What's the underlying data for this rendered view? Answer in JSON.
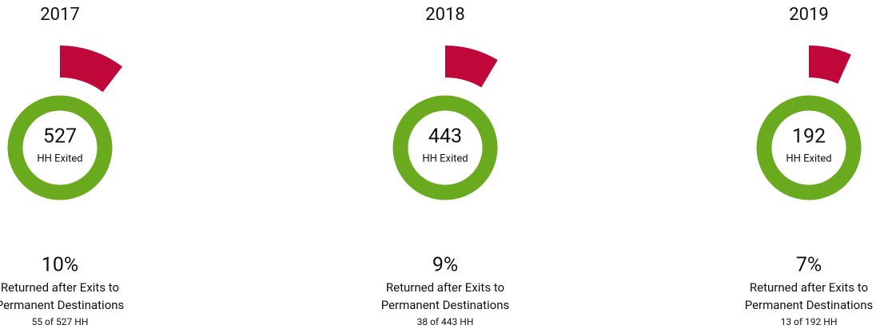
{
  "chart_data": [
    {
      "type": "pie",
      "title": "2017",
      "values": [
        55,
        472
      ],
      "colors": [
        "#c0073a",
        "#6aaa1e"
      ],
      "total": 527,
      "center_label": "HH Exited",
      "percent": "10%",
      "caption": [
        "Returned after Exits to",
        "Permanent Destinations"
      ],
      "detail": "55 of 527 HH"
    },
    {
      "type": "pie",
      "title": "2018",
      "values": [
        38,
        405
      ],
      "colors": [
        "#c0073a",
        "#6aaa1e"
      ],
      "total": 443,
      "center_label": "HH Exited",
      "percent": "9%",
      "caption": [
        "Returned after Exits to",
        "Permanent Destinations"
      ],
      "detail": "38 of 443 HH"
    },
    {
      "type": "pie",
      "title": "2019",
      "values": [
        13,
        179
      ],
      "colors": [
        "#c0073a",
        "#6aaa1e"
      ],
      "total": 192,
      "center_label": "HH Exited",
      "percent": "7%",
      "caption": [
        "Returned after Exits to",
        "Permanent Destinations"
      ],
      "detail": "13 of 192 HH"
    }
  ]
}
